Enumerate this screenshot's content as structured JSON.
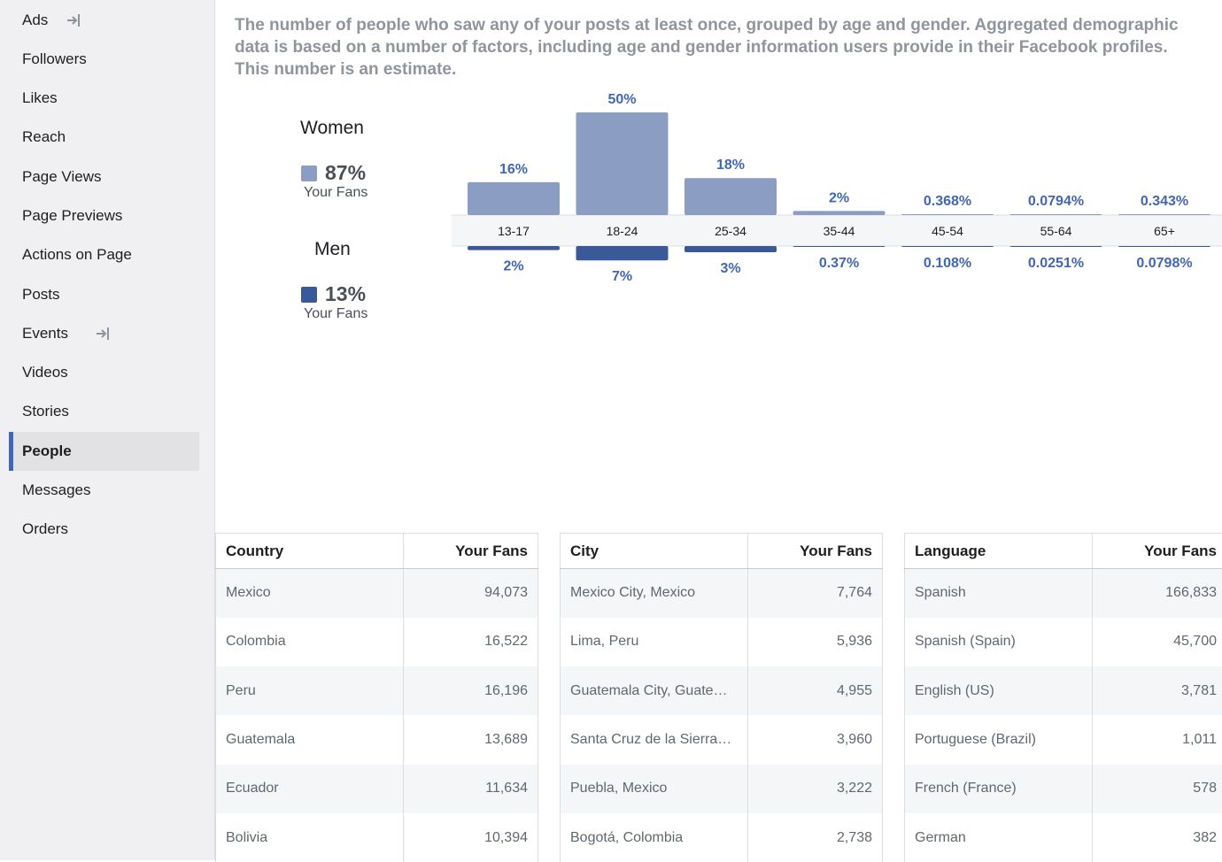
{
  "sidebar": {
    "items": [
      {
        "label": "Ads",
        "external": true
      },
      {
        "label": "Followers"
      },
      {
        "label": "Likes"
      },
      {
        "label": "Reach"
      },
      {
        "label": "Page Views"
      },
      {
        "label": "Page Previews"
      },
      {
        "label": "Actions on Page"
      },
      {
        "label": "Posts"
      },
      {
        "label": "Events",
        "external": true
      },
      {
        "label": "Videos"
      },
      {
        "label": "Stories"
      },
      {
        "label": "People",
        "active": true
      },
      {
        "label": "Messages"
      },
      {
        "label": "Orders"
      }
    ]
  },
  "description": "The number of people who saw any of your posts at least once, grouped by age and gender. Aggregated demographic data is based on a number of factors, including age and gender information users provide in their Facebook profiles. This number is an estimate.",
  "legend": {
    "women": {
      "title": "Women",
      "pct": "87%",
      "sub": "Your Fans",
      "color": "#8b9dc3"
    },
    "men": {
      "title": "Men",
      "pct": "13%",
      "sub": "Your Fans",
      "color": "#3b5998"
    }
  },
  "chart_data": {
    "type": "bar",
    "categories": [
      "13-17",
      "18-24",
      "25-34",
      "35-44",
      "45-54",
      "55-64",
      "65+"
    ],
    "series": [
      {
        "name": "Women",
        "values": [
          16,
          50,
          18,
          2,
          0.368,
          0.0794,
          0.343
        ],
        "labels": [
          "16%",
          "50%",
          "18%",
          "2%",
          "0.368%",
          "0.0794%",
          "0.343%"
        ],
        "color": "#8b9dc3"
      },
      {
        "name": "Men",
        "values": [
          2,
          7,
          3,
          0.37,
          0.108,
          0.0251,
          0.0798
        ],
        "labels": [
          "2%",
          "7%",
          "3%",
          "0.37%",
          "0.108%",
          "0.0251%",
          "0.0798%"
        ],
        "color": "#3b5998"
      }
    ]
  },
  "tables": [
    {
      "col1": "Country",
      "col2": "Your Fans",
      "rows": [
        {
          "name": "Mexico",
          "value": "94,073"
        },
        {
          "name": "Colombia",
          "value": "16,522"
        },
        {
          "name": "Peru",
          "value": "16,196"
        },
        {
          "name": "Guatemala",
          "value": "13,689"
        },
        {
          "name": "Ecuador",
          "value": "11,634"
        },
        {
          "name": "Bolivia",
          "value": "10,394"
        }
      ]
    },
    {
      "col1": "City",
      "col2": "Your Fans",
      "rows": [
        {
          "name": "Mexico City, Mexico",
          "value": "7,764"
        },
        {
          "name": "Lima, Peru",
          "value": "5,936"
        },
        {
          "name": "Guatemala City, Guate…",
          "value": "4,955"
        },
        {
          "name": "Santa Cruz de la Sierra…",
          "value": "3,960"
        },
        {
          "name": "Puebla, Mexico",
          "value": "3,222"
        },
        {
          "name": "Bogotá, Colombia",
          "value": "2,738"
        }
      ]
    },
    {
      "col1": "Language",
      "col2": "Your Fans",
      "rows": [
        {
          "name": "Spanish",
          "value": "166,833"
        },
        {
          "name": "Spanish (Spain)",
          "value": "45,700"
        },
        {
          "name": "English (US)",
          "value": "3,781"
        },
        {
          "name": "Portuguese (Brazil)",
          "value": "1,011"
        },
        {
          "name": "French (France)",
          "value": "578"
        },
        {
          "name": "German",
          "value": "382"
        }
      ]
    }
  ]
}
